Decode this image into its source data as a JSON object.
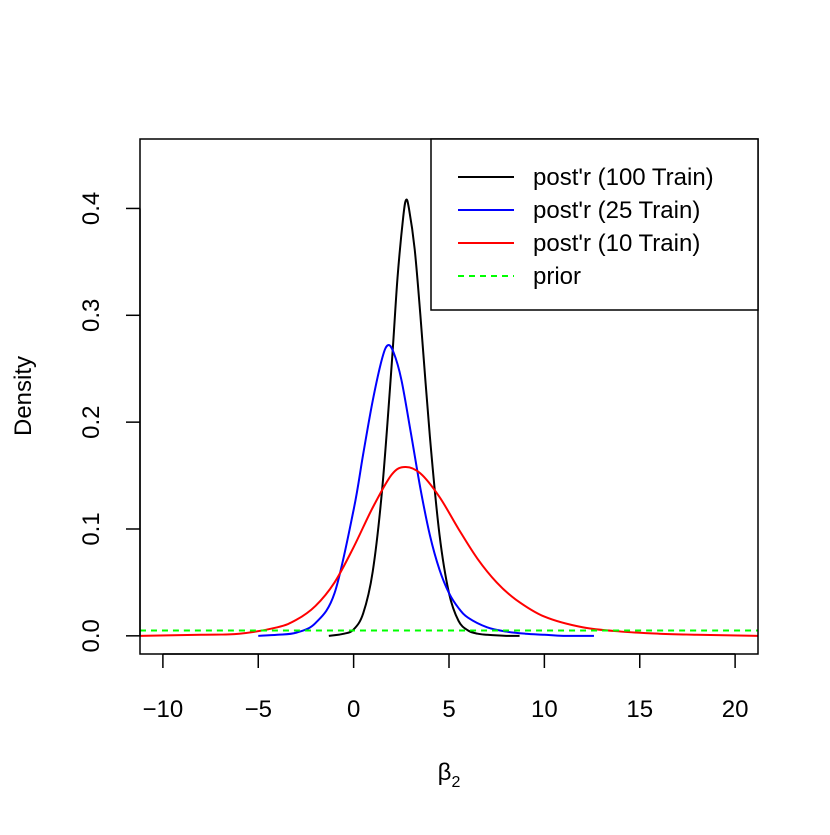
{
  "chart_data": {
    "type": "line",
    "title": "",
    "xlabel_main": "β",
    "xlabel_sub": "2",
    "ylabel": "Density",
    "xlim": [
      -11.2,
      21.2
    ],
    "ylim": [
      -0.017,
      0.465
    ],
    "xticks": [
      -10,
      -5,
      0,
      5,
      10,
      15,
      20
    ],
    "xtick_labels": [
      "−10",
      "−5",
      "0",
      "5",
      "10",
      "15",
      "20"
    ],
    "yticks": [
      0.0,
      0.1,
      0.2,
      0.3,
      0.4
    ],
    "ytick_labels": [
      "0.0",
      "0.1",
      "0.2",
      "0.3",
      "0.4"
    ],
    "grid": false,
    "legend_position": "top-right",
    "series": [
      {
        "name": "post'r (100 Train)",
        "color": "#000000",
        "dash": "solid",
        "x": [
          -1.3,
          -0.5,
          0.0,
          0.5,
          1.0,
          1.5,
          2.0,
          2.3,
          2.6,
          2.75,
          2.9,
          3.2,
          3.5,
          4.0,
          4.5,
          5.0,
          5.5,
          6.0,
          6.5,
          7.0,
          8.0,
          8.7
        ],
        "y": [
          0.0,
          0.002,
          0.006,
          0.021,
          0.06,
          0.138,
          0.255,
          0.335,
          0.392,
          0.408,
          0.4,
          0.362,
          0.3,
          0.186,
          0.095,
          0.04,
          0.014,
          0.005,
          0.002,
          0.001,
          0.0,
          0.0
        ]
      },
      {
        "name": "post'r (25 Train)",
        "color": "#0000ff",
        "dash": "solid",
        "x": [
          -5.0,
          -4.0,
          -3.0,
          -2.0,
          -1.0,
          0.0,
          0.5,
          1.0,
          1.5,
          1.8,
          2.1,
          2.5,
          3.0,
          3.5,
          4.0,
          4.5,
          5.0,
          5.5,
          6.0,
          7.0,
          8.0,
          9.0,
          10.0,
          11.0,
          12.6
        ],
        "y": [
          0.0,
          0.001,
          0.003,
          0.012,
          0.04,
          0.118,
          0.17,
          0.22,
          0.26,
          0.272,
          0.265,
          0.24,
          0.19,
          0.138,
          0.094,
          0.062,
          0.04,
          0.026,
          0.017,
          0.008,
          0.004,
          0.002,
          0.001,
          0.0,
          0.0
        ]
      },
      {
        "name": "post'r (10 Train)",
        "color": "#ff0000",
        "dash": "solid",
        "x": [
          -11.2,
          -8.0,
          -6.0,
          -4.0,
          -3.0,
          -2.0,
          -1.0,
          0.0,
          1.0,
          2.0,
          2.7,
          3.5,
          4.5,
          5.5,
          6.5,
          7.5,
          8.5,
          10.0,
          12.0,
          14.0,
          16.0,
          18.0,
          21.2
        ],
        "y": [
          0.0,
          0.001,
          0.002,
          0.008,
          0.015,
          0.028,
          0.05,
          0.083,
          0.12,
          0.151,
          0.158,
          0.152,
          0.13,
          0.1,
          0.072,
          0.05,
          0.034,
          0.018,
          0.008,
          0.004,
          0.002,
          0.001,
          0.0
        ]
      },
      {
        "name": "prior",
        "color": "#00ff00",
        "dash": "dashed",
        "x": [
          -11.2,
          21.2
        ],
        "y": [
          0.005,
          0.005
        ]
      }
    ]
  }
}
